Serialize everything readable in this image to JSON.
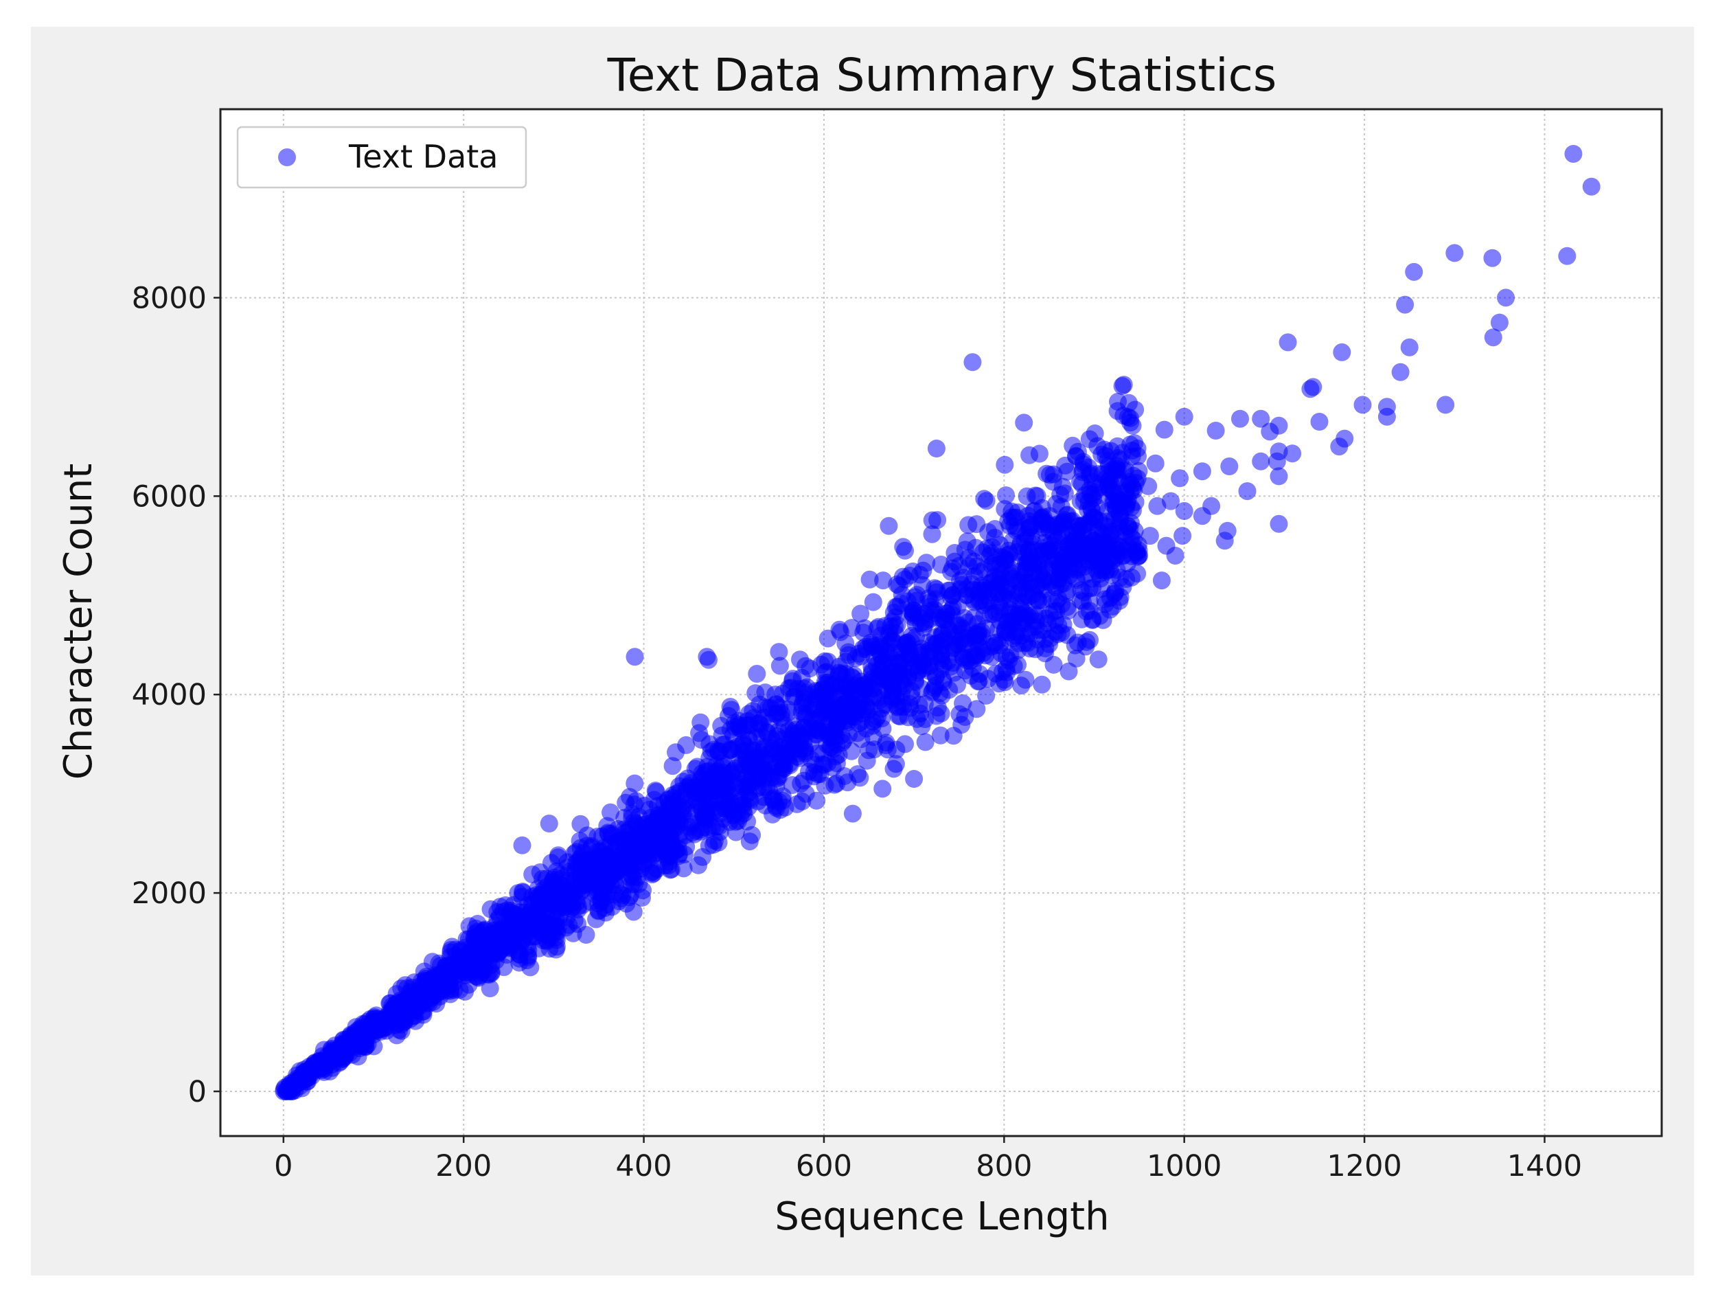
{
  "chart_data": {
    "type": "scatter",
    "title": "Text Data Summary Statistics",
    "xlabel": "Sequence Length",
    "ylabel": "Character Count",
    "xlim": [
      -70,
      1530
    ],
    "ylim": [
      -450,
      9900
    ],
    "xticks": [
      "0",
      "200",
      "400",
      "600",
      "800",
      "1000",
      "1200",
      "1400"
    ],
    "yticks": [
      "0",
      "2000",
      "4000",
      "6000",
      "8000"
    ],
    "grid": true,
    "legend_position": "top-left",
    "series": [
      {
        "name": "Text Data",
        "color": "#0000ff",
        "alpha": 0.5,
        "trend": {
          "slope": 6.3,
          "x_min": 0,
          "x_max": 950,
          "count": 2600
        },
        "points": [
          [
            1432,
            9450
          ],
          [
            1452,
            9120
          ],
          [
            1300,
            8450
          ],
          [
            1342,
            8400
          ],
          [
            1425,
            8420
          ],
          [
            1255,
            8260
          ],
          [
            1245,
            7930
          ],
          [
            1357,
            8000
          ],
          [
            1350,
            7750
          ],
          [
            1343,
            7600
          ],
          [
            1250,
            7500
          ],
          [
            1240,
            7250
          ],
          [
            1115,
            7550
          ],
          [
            1175,
            7450
          ],
          [
            1290,
            6920
          ],
          [
            1225,
            6900
          ],
          [
            1225,
            6800
          ],
          [
            1198,
            6920
          ],
          [
            1143,
            7100
          ],
          [
            1140,
            7080
          ],
          [
            1150,
            6750
          ],
          [
            1178,
            6580
          ],
          [
            1172,
            6500
          ],
          [
            1105,
            6710
          ],
          [
            1085,
            6780
          ],
          [
            1062,
            6780
          ],
          [
            1095,
            6650
          ],
          [
            1035,
            6660
          ],
          [
            1000,
            6800
          ],
          [
            978,
            6670
          ],
          [
            1105,
            6450
          ],
          [
            1120,
            6430
          ],
          [
            1103,
            6350
          ],
          [
            1085,
            6350
          ],
          [
            1050,
            6300
          ],
          [
            1020,
            6250
          ],
          [
            995,
            6180
          ],
          [
            968,
            6330
          ],
          [
            960,
            6100
          ],
          [
            942,
            6400
          ],
          [
            928,
            6150
          ],
          [
            880,
            6400
          ],
          [
            888,
            6320
          ],
          [
            1105,
            6200
          ],
          [
            1070,
            6050
          ],
          [
            1030,
            5900
          ],
          [
            1000,
            5850
          ],
          [
            985,
            5950
          ],
          [
            970,
            5900
          ],
          [
            935,
            5900
          ],
          [
            915,
            5850
          ],
          [
            898,
            6010
          ],
          [
            1020,
            5800
          ],
          [
            1048,
            5650
          ],
          [
            1105,
            5720
          ],
          [
            1045,
            5550
          ],
          [
            998,
            5600
          ],
          [
            980,
            5500
          ],
          [
            962,
            5600
          ],
          [
            950,
            5400
          ],
          [
            938,
            5500
          ],
          [
            920,
            5350
          ],
          [
            975,
            5150
          ],
          [
            990,
            5400
          ],
          [
            945,
            5650
          ],
          [
            903,
            5250
          ],
          [
            890,
            5400
          ],
          [
            870,
            5050
          ],
          [
            857,
            5550
          ],
          [
            850,
            5450
          ],
          [
            838,
            5300
          ],
          [
            823,
            5550
          ],
          [
            805,
            5450
          ],
          [
            790,
            5300
          ],
          [
            770,
            5050
          ],
          [
            765,
            7350
          ],
          [
            822,
            6740
          ],
          [
            725,
            6480
          ],
          [
            672,
            5700
          ],
          [
            690,
            5450
          ],
          [
            710,
            5250
          ],
          [
            730,
            5310
          ],
          [
            740,
            5050
          ],
          [
            830,
            5700
          ],
          [
            885,
            4950
          ],
          [
            910,
            4750
          ],
          [
            895,
            4550
          ],
          [
            870,
            4600
          ],
          [
            855,
            4300
          ],
          [
            842,
            4100
          ],
          [
            815,
            4300
          ],
          [
            800,
            4150
          ],
          [
            390,
            4380
          ],
          [
            470,
            4380
          ],
          [
            472,
            4350
          ],
          [
            550,
            4430
          ],
          [
            463,
            3720
          ],
          [
            473,
            3500
          ],
          [
            447,
            3490
          ],
          [
            432,
            3280
          ],
          [
            295,
            2700
          ],
          [
            265,
            2480
          ],
          [
            305,
            2380
          ],
          [
            632,
            2800
          ],
          [
            580,
            3000
          ],
          [
            620,
            3900
          ],
          [
            546,
            4000
          ],
          [
            560,
            3850
          ],
          [
            680,
            3300
          ],
          [
            690,
            3500
          ],
          [
            665,
            3050
          ],
          [
            700,
            3150
          ]
        ]
      }
    ]
  }
}
